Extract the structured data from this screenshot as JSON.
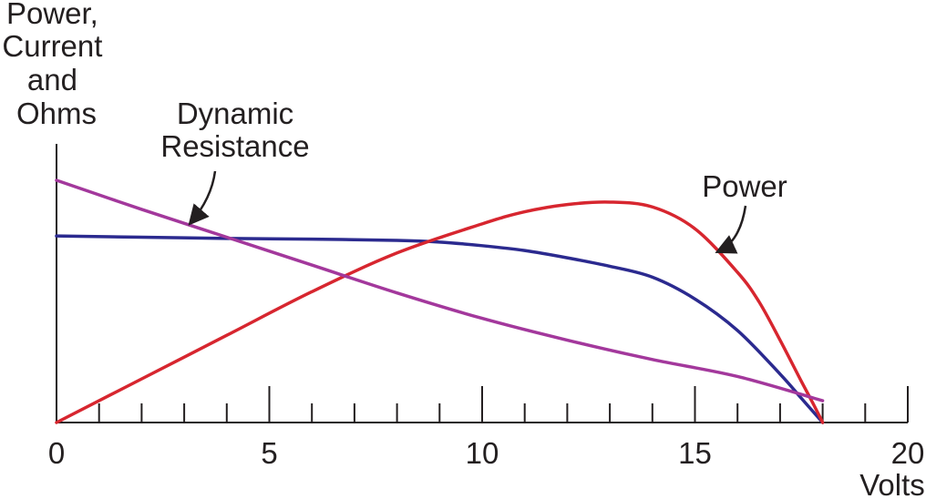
{
  "chart_data": {
    "type": "line",
    "ylabel_lines": [
      "Power,",
      "Current",
      "and",
      "Ohms"
    ],
    "xlabel": "Volts",
    "xlim": [
      0,
      20
    ],
    "ylim": [
      0,
      1
    ],
    "x_ticks": [
      0,
      5,
      10,
      15,
      20
    ],
    "minor_tick_step": 1,
    "grid": false,
    "legend": "none",
    "series": [
      {
        "key": "current",
        "color": "#2b2a8f",
        "x": [
          0,
          2,
          4,
          6,
          8,
          9,
          10,
          11,
          12,
          13,
          14,
          15,
          16,
          17,
          17.5,
          18
        ],
        "y": [
          0.77,
          0.765,
          0.76,
          0.757,
          0.752,
          0.745,
          0.73,
          0.71,
          0.68,
          0.645,
          0.6,
          0.51,
          0.38,
          0.2,
          0.1,
          0.0
        ]
      },
      {
        "key": "power",
        "name": "Power",
        "color": "#d7262f",
        "x": [
          0,
          2,
          4,
          6,
          8,
          10,
          11,
          12,
          13,
          14,
          15,
          16,
          16.5,
          17,
          17.5,
          17.8,
          18
        ],
        "y": [
          0.0,
          0.18,
          0.36,
          0.54,
          0.7,
          0.82,
          0.87,
          0.9,
          0.91,
          0.89,
          0.8,
          0.62,
          0.5,
          0.34,
          0.17,
          0.07,
          0.0
        ]
      },
      {
        "key": "resistance",
        "name": "Dynamic Resistance",
        "color": "#a3389c",
        "x": [
          0,
          2,
          4,
          6,
          8,
          10,
          12,
          14,
          16,
          18
        ],
        "y": [
          1.0,
          0.88,
          0.765,
          0.65,
          0.535,
          0.43,
          0.34,
          0.26,
          0.19,
          0.09
        ]
      }
    ],
    "annotations": [
      {
        "text_lines": [
          "Dynamic",
          "Resistance"
        ],
        "series": "resistance",
        "point_x": 3.2
      },
      {
        "text_lines": [
          "Power"
        ],
        "series": "power",
        "point_x": 15.6
      }
    ]
  }
}
